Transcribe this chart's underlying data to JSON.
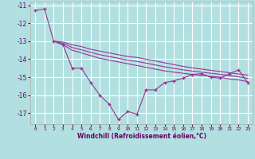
{
  "xlabel": "Windchill (Refroidissement éolien,°C)",
  "background_color": "#b2e0e0",
  "grid_color": "#ffffff",
  "line_color": "#993399",
  "x_hours": [
    0,
    1,
    2,
    3,
    4,
    5,
    6,
    7,
    8,
    9,
    10,
    11,
    12,
    13,
    14,
    15,
    16,
    17,
    18,
    19,
    20,
    21,
    22,
    23
  ],
  "series_main": [
    -11.3,
    -11.2,
    -13.0,
    -13.2,
    -14.5,
    -14.5,
    -15.3,
    -16.0,
    -16.5,
    -17.35,
    -16.9,
    -17.05,
    -15.7,
    -15.7,
    -15.3,
    -15.2,
    -15.05,
    -14.85,
    -14.8,
    -15.0,
    -15.05,
    -14.8,
    -14.6,
    -15.3
  ],
  "series_upper": [
    null,
    null,
    -13.0,
    -13.05,
    -13.2,
    -13.3,
    -13.45,
    -13.55,
    -13.65,
    -13.75,
    -13.85,
    -13.9,
    -14.0,
    -14.1,
    -14.2,
    -14.3,
    -14.4,
    -14.48,
    -14.55,
    -14.62,
    -14.68,
    -14.75,
    -14.82,
    -14.88
  ],
  "series_lower": [
    null,
    null,
    -13.0,
    -13.2,
    -13.5,
    -13.65,
    -13.8,
    -13.95,
    -14.05,
    -14.15,
    -14.25,
    -14.35,
    -14.45,
    -14.55,
    -14.65,
    -14.72,
    -14.78,
    -14.85,
    -14.9,
    -14.95,
    -15.0,
    -15.1,
    -15.15,
    -15.25
  ],
  "series_mid": [
    null,
    null,
    -13.0,
    -13.12,
    -13.35,
    -13.48,
    -13.62,
    -13.75,
    -13.85,
    -13.95,
    -14.05,
    -14.12,
    -14.22,
    -14.32,
    -14.42,
    -14.51,
    -14.59,
    -14.66,
    -14.72,
    -14.78,
    -14.84,
    -14.92,
    -14.98,
    -15.06
  ],
  "x_straight_start": 2,
  "ylim": [
    -17.6,
    -10.8
  ],
  "yticks": [
    -17,
    -16,
    -15,
    -14,
    -13,
    -12,
    -11
  ],
  "xticks": [
    0,
    1,
    2,
    3,
    4,
    5,
    6,
    7,
    8,
    9,
    10,
    11,
    12,
    13,
    14,
    15,
    16,
    17,
    18,
    19,
    20,
    21,
    22,
    23
  ]
}
